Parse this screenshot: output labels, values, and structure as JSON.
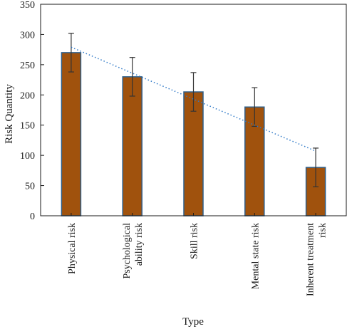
{
  "chart_data": {
    "type": "bar",
    "categories": [
      [
        "Physical risk"
      ],
      [
        "Psychological",
        "ability risk"
      ],
      [
        "Skill risk"
      ],
      [
        "Mental state risk"
      ],
      [
        "Inherent treatment",
        "risk"
      ]
    ],
    "values": [
      270,
      230,
      205,
      180,
      80
    ],
    "error": [
      32,
      32,
      32,
      32,
      32
    ],
    "trendline": {
      "type": "linear",
      "style": "dotted"
    },
    "xlabel": "Type",
    "ylabel": "Risk Quantity",
    "ylim": [
      0,
      350
    ],
    "yticks": [
      0,
      50,
      100,
      150,
      200,
      250,
      300,
      350
    ],
    "grid": false,
    "legend": "none",
    "colors": {
      "bar_fill": "#a0520d",
      "bar_stroke": "#2f5f8a",
      "trendline": "#2e78c7",
      "error_bar": "#333333"
    }
  }
}
